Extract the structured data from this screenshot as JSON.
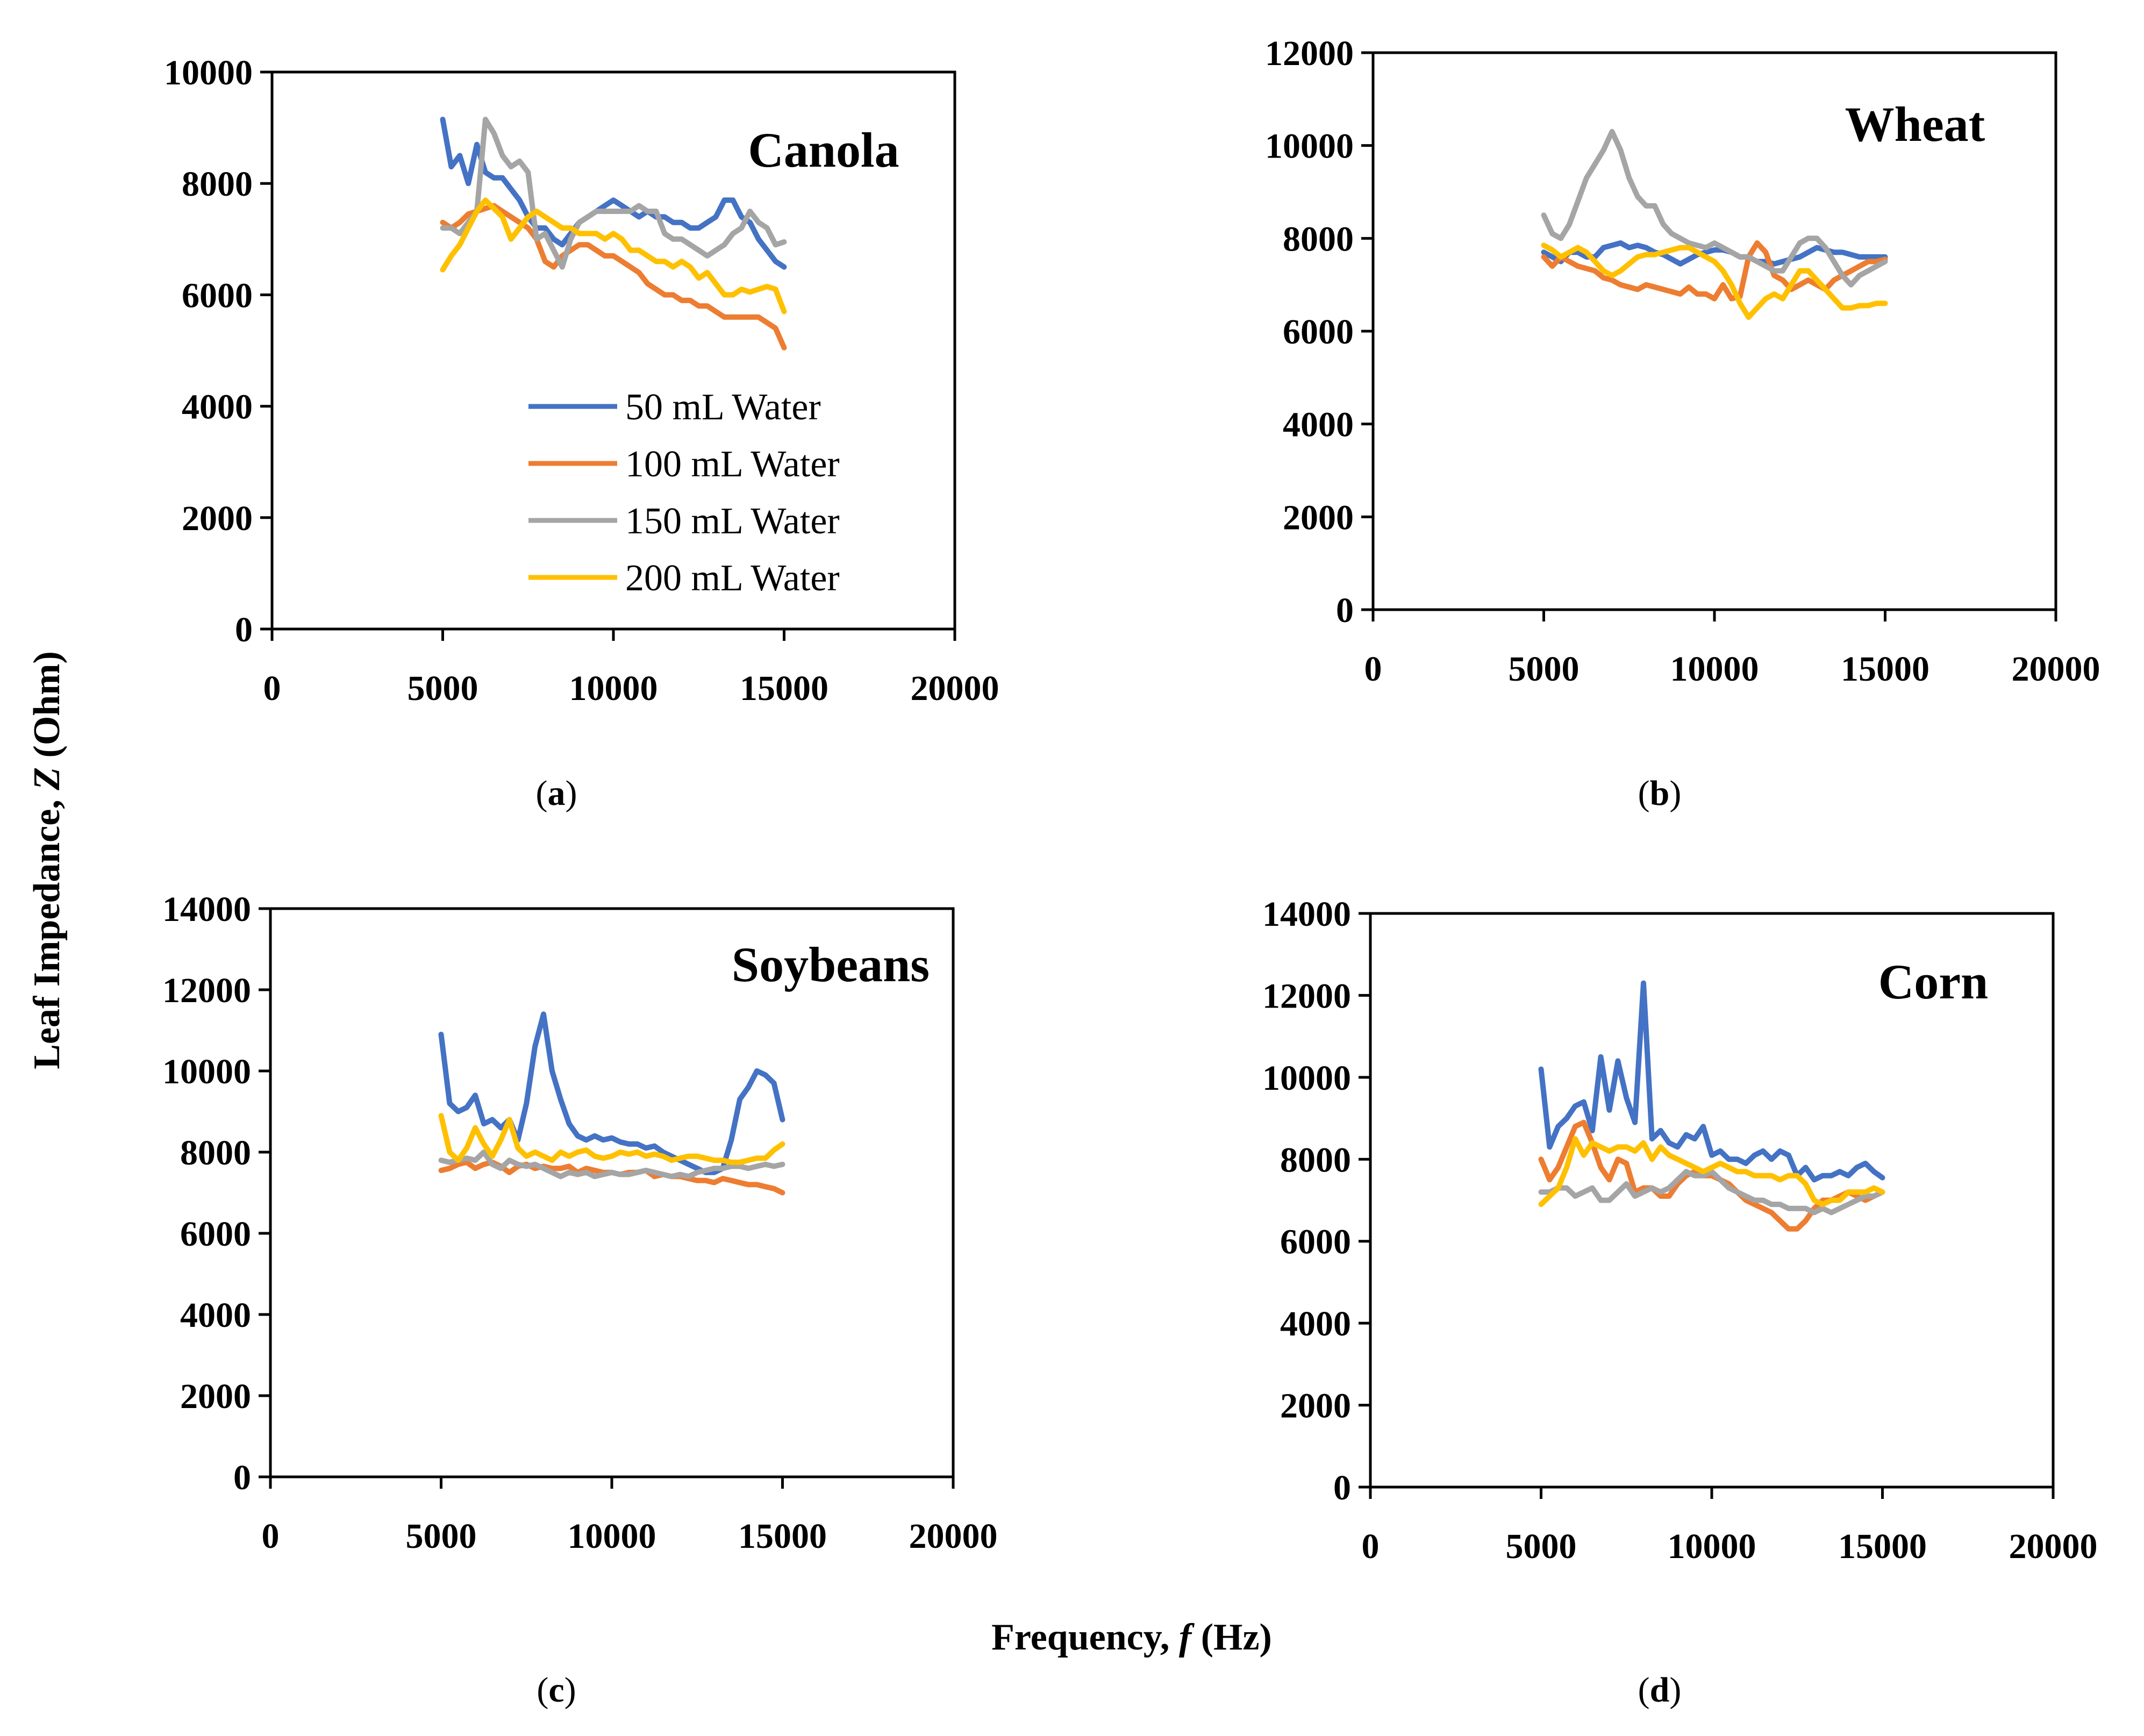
{
  "figure": {
    "ylabel_prefix": "Leaf Impedance, ",
    "ylabel_var": "Z",
    "ylabel_suffix": " (Ohm)",
    "xlabel_prefix": "Frequency, ",
    "xlabel_var": "f",
    "xlabel_suffix": " (Hz)"
  },
  "legend": {
    "entries": [
      "50 mL Water",
      "100 mL Water",
      "150 mL Water",
      "200 mL Water"
    ]
  },
  "chart_data": [
    {
      "type": "line",
      "title": "Canola",
      "caption": {
        "label": "a"
      },
      "xlim": [
        0,
        20000
      ],
      "ylim": [
        0,
        10000
      ],
      "xticks": [
        "0",
        "5000",
        "10000",
        "15000",
        "20000"
      ],
      "yticks": [
        "0",
        "2000",
        "4000",
        "6000",
        "8000",
        "10000"
      ],
      "x": [
        5000,
        5250,
        5500,
        5750,
        6000,
        6250,
        6500,
        6750,
        7000,
        7250,
        7500,
        7750,
        8000,
        8250,
        8500,
        8750,
        9000,
        9250,
        9500,
        9750,
        10000,
        10250,
        10500,
        10750,
        11000,
        11250,
        11500,
        11750,
        12000,
        12250,
        12500,
        12750,
        13000,
        13250,
        13500,
        13750,
        14000,
        14250,
        14500,
        14750,
        15000
      ],
      "series": [
        {
          "name": "50 mL Water",
          "color": "#4472C4",
          "values": [
            9150,
            8300,
            8500,
            8000,
            8700,
            8200,
            8100,
            8100,
            7900,
            7700,
            7400,
            7200,
            7200,
            7000,
            6900,
            7100,
            7300,
            7400,
            7500,
            7600,
            7700,
            7600,
            7500,
            7400,
            7500,
            7400,
            7400,
            7300,
            7300,
            7200,
            7200,
            7300,
            7400,
            7700,
            7700,
            7400,
            7300,
            7000,
            6800,
            6600,
            6500
          ]
        },
        {
          "name": "100 mL Water",
          "color": "#ED7D31",
          "values": [
            7300,
            7200,
            7300,
            7450,
            7500,
            7550,
            7600,
            7500,
            7400,
            7300,
            7200,
            7000,
            6600,
            6500,
            6700,
            6800,
            6900,
            6900,
            6800,
            6700,
            6700,
            6600,
            6500,
            6400,
            6200,
            6100,
            6000,
            6000,
            5900,
            5900,
            5800,
            5800,
            5700,
            5600,
            5600,
            5600,
            5600,
            5600,
            5500,
            5400,
            5050
          ]
        },
        {
          "name": "150 mL Water",
          "color": "#A5A5A5",
          "values": [
            7200,
            7200,
            7100,
            7300,
            7500,
            9150,
            8900,
            8500,
            8300,
            8400,
            8200,
            7000,
            7100,
            6800,
            6500,
            7000,
            7300,
            7400,
            7500,
            7500,
            7500,
            7500,
            7500,
            7600,
            7500,
            7500,
            7100,
            7000,
            7000,
            6900,
            6800,
            6700,
            6800,
            6900,
            7100,
            7200,
            7500,
            7300,
            7200,
            6900,
            6950
          ]
        },
        {
          "name": "200 mL Water",
          "color": "#FFC000",
          "values": [
            6450,
            6700,
            6900,
            7200,
            7500,
            7700,
            7550,
            7400,
            7000,
            7200,
            7400,
            7500,
            7400,
            7300,
            7200,
            7200,
            7100,
            7100,
            7100,
            7000,
            7100,
            7000,
            6800,
            6800,
            6700,
            6600,
            6600,
            6500,
            6600,
            6500,
            6300,
            6400,
            6200,
            6000,
            6000,
            6100,
            6050,
            6100,
            6150,
            6100,
            5700
          ]
        }
      ]
    },
    {
      "type": "line",
      "title": "Wheat",
      "caption": {
        "label": "b"
      },
      "xlim": [
        0,
        20000
      ],
      "ylim": [
        0,
        12000
      ],
      "xticks": [
        "0",
        "5000",
        "10000",
        "15000",
        "20000"
      ],
      "yticks": [
        "0",
        "2000",
        "4000",
        "6000",
        "8000",
        "10000",
        "12000"
      ],
      "x": [
        5000,
        5250,
        5500,
        5750,
        6000,
        6250,
        6500,
        6750,
        7000,
        7250,
        7500,
        7750,
        8000,
        8250,
        8500,
        8750,
        9000,
        9250,
        9500,
        9750,
        10000,
        10250,
        10500,
        10750,
        11000,
        11250,
        11500,
        11750,
        12000,
        12250,
        12500,
        12750,
        13000,
        13250,
        13500,
        13750,
        14000,
        14250,
        14500,
        14750,
        15000
      ],
      "series": [
        {
          "name": "50 mL Water",
          "color": "#4472C4",
          "values": [
            7700,
            7600,
            7500,
            7700,
            7700,
            7600,
            7600,
            7800,
            7850,
            7900,
            7800,
            7850,
            7800,
            7700,
            7650,
            7550,
            7450,
            7550,
            7650,
            7700,
            7750,
            7750,
            7700,
            7600,
            7600,
            7500,
            7500,
            7450,
            7500,
            7550,
            7600,
            7700,
            7800,
            7750,
            7700,
            7700,
            7650,
            7600,
            7600,
            7600,
            7600
          ]
        },
        {
          "name": "100 mL Water",
          "color": "#ED7D31",
          "values": [
            7600,
            7400,
            7600,
            7500,
            7400,
            7350,
            7300,
            7150,
            7100,
            7000,
            6950,
            6900,
            7000,
            6950,
            6900,
            6850,
            6800,
            6950,
            6800,
            6800,
            6700,
            7000,
            6700,
            6750,
            7600,
            7900,
            7700,
            7200,
            7100,
            6900,
            7000,
            7100,
            7000,
            6900,
            7100,
            7200,
            7300,
            7400,
            7500,
            7500,
            7550
          ]
        },
        {
          "name": "150 mL Water",
          "color": "#A5A5A5",
          "values": [
            8500,
            8100,
            8000,
            8300,
            8800,
            9300,
            9600,
            9900,
            10300,
            9900,
            9300,
            8900,
            8700,
            8700,
            8300,
            8100,
            8000,
            7900,
            7850,
            7800,
            7900,
            7800,
            7700,
            7600,
            7600,
            7500,
            7400,
            7300,
            7300,
            7600,
            7900,
            8000,
            8000,
            7800,
            7500,
            7200,
            7000,
            7200,
            7300,
            7400,
            7500
          ]
        },
        {
          "name": "200 mL Water",
          "color": "#FFC000",
          "values": [
            7850,
            7750,
            7600,
            7700,
            7800,
            7700,
            7500,
            7300,
            7200,
            7300,
            7450,
            7600,
            7650,
            7650,
            7700,
            7750,
            7800,
            7800,
            7700,
            7600,
            7500,
            7300,
            7000,
            6600,
            6300,
            6500,
            6700,
            6800,
            6700,
            7000,
            7300,
            7300,
            7100,
            6900,
            6700,
            6500,
            6500,
            6550,
            6550,
            6600,
            6600
          ]
        }
      ]
    },
    {
      "type": "line",
      "title": "Soybeans",
      "caption": {
        "label": "c"
      },
      "xlim": [
        0,
        20000
      ],
      "ylim": [
        0,
        14000
      ],
      "xticks": [
        "0",
        "5000",
        "10000",
        "15000",
        "20000"
      ],
      "yticks": [
        "0",
        "2000",
        "4000",
        "6000",
        "8000",
        "10000",
        "12000",
        "14000"
      ],
      "x": [
        5000,
        5250,
        5500,
        5750,
        6000,
        6250,
        6500,
        6750,
        7000,
        7250,
        7500,
        7750,
        8000,
        8250,
        8500,
        8750,
        9000,
        9250,
        9500,
        9750,
        10000,
        10250,
        10500,
        10750,
        11000,
        11250,
        11500,
        11750,
        12000,
        12250,
        12500,
        12750,
        13000,
        13250,
        13500,
        13750,
        14000,
        14250,
        14500,
        14750,
        15000
      ],
      "series": [
        {
          "name": "50 mL Water",
          "color": "#4472C4",
          "values": [
            10900,
            9200,
            9000,
            9100,
            9400,
            8700,
            8800,
            8600,
            8800,
            8300,
            9200,
            10600,
            11400,
            10000,
            9300,
            8700,
            8400,
            8300,
            8400,
            8300,
            8350,
            8250,
            8200,
            8200,
            8100,
            8150,
            8000,
            7900,
            7800,
            7700,
            7600,
            7500,
            7500,
            7600,
            8300,
            9300,
            9600,
            10000,
            9900,
            9700,
            8800
          ]
        },
        {
          "name": "100 mL Water",
          "color": "#ED7D31",
          "values": [
            7550,
            7600,
            7700,
            7750,
            7600,
            7700,
            7750,
            7650,
            7500,
            7650,
            7700,
            7600,
            7650,
            7600,
            7600,
            7650,
            7500,
            7600,
            7550,
            7500,
            7500,
            7450,
            7500,
            7500,
            7550,
            7400,
            7450,
            7400,
            7400,
            7350,
            7300,
            7300,
            7250,
            7350,
            7300,
            7250,
            7200,
            7200,
            7150,
            7100,
            7000
          ]
        },
        {
          "name": "150 mL Water",
          "color": "#A5A5A5",
          "values": [
            7800,
            7750,
            7800,
            7850,
            7800,
            8000,
            7700,
            7600,
            7800,
            7700,
            7650,
            7700,
            7600,
            7500,
            7400,
            7500,
            7450,
            7500,
            7400,
            7450,
            7500,
            7450,
            7450,
            7500,
            7550,
            7500,
            7450,
            7400,
            7450,
            7400,
            7500,
            7550,
            7600,
            7600,
            7650,
            7650,
            7600,
            7650,
            7700,
            7650,
            7700
          ]
        },
        {
          "name": "200 mL Water",
          "color": "#FFC000",
          "values": [
            8900,
            8000,
            7800,
            8100,
            8600,
            8200,
            7900,
            8300,
            8800,
            8100,
            7900,
            8000,
            7900,
            7800,
            8000,
            7900,
            8000,
            8050,
            7900,
            7850,
            7900,
            8000,
            7950,
            8000,
            7900,
            7950,
            7900,
            7800,
            7850,
            7900,
            7900,
            7850,
            7800,
            7800,
            7750,
            7750,
            7800,
            7850,
            7850,
            8050,
            8200
          ]
        }
      ]
    },
    {
      "type": "line",
      "title": "Corn",
      "caption": {
        "label": "d"
      },
      "xlim": [
        0,
        20000
      ],
      "ylim": [
        0,
        14000
      ],
      "xticks": [
        "0",
        "5000",
        "10000",
        "15000",
        "20000"
      ],
      "yticks": [
        "0",
        "2000",
        "4000",
        "6000",
        "8000",
        "10000",
        "12000",
        "14000"
      ],
      "x": [
        5000,
        5250,
        5500,
        5750,
        6000,
        6250,
        6500,
        6750,
        7000,
        7250,
        7500,
        7750,
        8000,
        8250,
        8500,
        8750,
        9000,
        9250,
        9500,
        9750,
        10000,
        10250,
        10500,
        10750,
        11000,
        11250,
        11500,
        11750,
        12000,
        12250,
        12500,
        12750,
        13000,
        13250,
        13500,
        13750,
        14000,
        14250,
        14500,
        14750,
        15000
      ],
      "series": [
        {
          "name": "50 mL Water",
          "color": "#4472C4",
          "values": [
            10200,
            8300,
            8800,
            9000,
            9300,
            9400,
            8700,
            10500,
            9200,
            10400,
            9500,
            8900,
            12300,
            8500,
            8700,
            8400,
            8300,
            8600,
            8500,
            8800,
            8100,
            8200,
            8000,
            8000,
            7900,
            8100,
            8200,
            8000,
            8200,
            8100,
            7600,
            7800,
            7500,
            7600,
            7600,
            7700,
            7600,
            7800,
            7900,
            7700,
            7550
          ]
        },
        {
          "name": "100 mL Water",
          "color": "#ED7D31",
          "values": [
            8000,
            7500,
            7800,
            8300,
            8800,
            8900,
            8400,
            7800,
            7500,
            8000,
            7900,
            7200,
            7300,
            7300,
            7100,
            7100,
            7400,
            7600,
            7700,
            7600,
            7600,
            7500,
            7400,
            7200,
            7000,
            6900,
            6800,
            6700,
            6500,
            6300,
            6300,
            6500,
            6800,
            7000,
            7000,
            7100,
            7200,
            7100,
            7000,
            7100,
            7200
          ]
        },
        {
          "name": "150 mL Water",
          "color": "#A5A5A5",
          "values": [
            7200,
            7200,
            7300,
            7300,
            7100,
            7200,
            7300,
            7000,
            7000,
            7200,
            7400,
            7100,
            7200,
            7300,
            7200,
            7300,
            7500,
            7700,
            7600,
            7600,
            7700,
            7500,
            7300,
            7200,
            7100,
            7000,
            7000,
            6900,
            6900,
            6800,
            6800,
            6800,
            6700,
            6800,
            6700,
            6800,
            6900,
            7000,
            7100,
            7100,
            7200
          ]
        },
        {
          "name": "200 mL Water",
          "color": "#FFC000",
          "values": [
            6900,
            7100,
            7300,
            7800,
            8500,
            8100,
            8400,
            8300,
            8200,
            8300,
            8300,
            8200,
            8400,
            8000,
            8300,
            8100,
            8000,
            7900,
            7800,
            7700,
            7800,
            7900,
            7800,
            7700,
            7700,
            7600,
            7600,
            7600,
            7500,
            7600,
            7600,
            7400,
            7000,
            6900,
            7000,
            7000,
            7200,
            7200,
            7200,
            7300,
            7200
          ]
        }
      ]
    }
  ]
}
